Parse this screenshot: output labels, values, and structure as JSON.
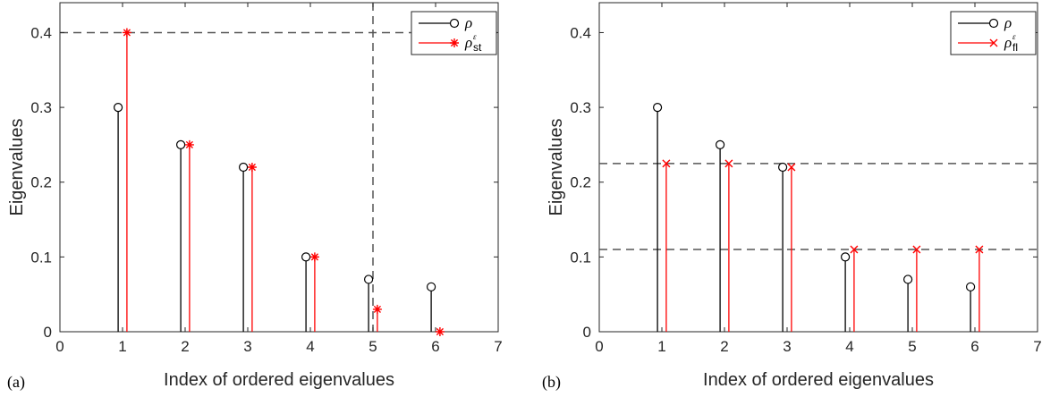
{
  "chart_data": [
    {
      "type": "stem",
      "panel_label": "(a)",
      "xlabel": "Index of ordered eigenvalues",
      "ylabel": "Eigenvalues",
      "xlim": [
        0,
        7
      ],
      "ylim": [
        0,
        0.44
      ],
      "xticks": [
        "0",
        "1",
        "2",
        "3",
        "4",
        "5",
        "6",
        "7"
      ],
      "yticks": [
        "0",
        "0.1",
        "0.2",
        "0.3",
        "0.4"
      ],
      "grid": false,
      "legend_position": "top-right",
      "series": [
        {
          "name": "ρ",
          "marker": "circle",
          "color": "#000000",
          "x": [
            1,
            2,
            3,
            4,
            5,
            6
          ],
          "values": [
            0.3,
            0.25,
            0.22,
            0.1,
            0.07,
            0.06
          ]
        },
        {
          "name": "ρ",
          "name_sup": "ε",
          "name_sub": "st",
          "marker": "asterisk",
          "color": "#ff0000",
          "x": [
            1,
            2,
            3,
            4,
            5,
            6
          ],
          "values": [
            0.4,
            0.25,
            0.22,
            0.1,
            0.03,
            0.0
          ]
        }
      ],
      "reference_lines": [
        {
          "orientation": "horizontal",
          "value": 0.4
        },
        {
          "orientation": "vertical",
          "value": 5
        }
      ]
    },
    {
      "type": "stem",
      "panel_label": "(b)",
      "xlabel": "Index of ordered eigenvalues",
      "ylabel": "Eigenvalues",
      "xlim": [
        0,
        7
      ],
      "ylim": [
        0,
        0.44
      ],
      "xticks": [
        "0",
        "1",
        "2",
        "3",
        "4",
        "5",
        "6",
        "7"
      ],
      "yticks": [
        "0",
        "0.1",
        "0.2",
        "0.3",
        "0.4"
      ],
      "grid": false,
      "legend_position": "top-right",
      "series": [
        {
          "name": "ρ",
          "marker": "circle",
          "color": "#000000",
          "x": [
            1,
            2,
            3,
            4,
            5,
            6
          ],
          "values": [
            0.3,
            0.25,
            0.22,
            0.1,
            0.07,
            0.06
          ]
        },
        {
          "name": "ρ",
          "name_sup": "ε",
          "name_sub": "fl",
          "marker": "cross",
          "color": "#ff0000",
          "x": [
            1,
            2,
            3,
            4,
            5,
            6
          ],
          "values": [
            0.225,
            0.225,
            0.22,
            0.11,
            0.11,
            0.11
          ]
        }
      ],
      "reference_lines": [
        {
          "orientation": "horizontal",
          "value": 0.225
        },
        {
          "orientation": "horizontal",
          "value": 0.11
        }
      ]
    }
  ]
}
